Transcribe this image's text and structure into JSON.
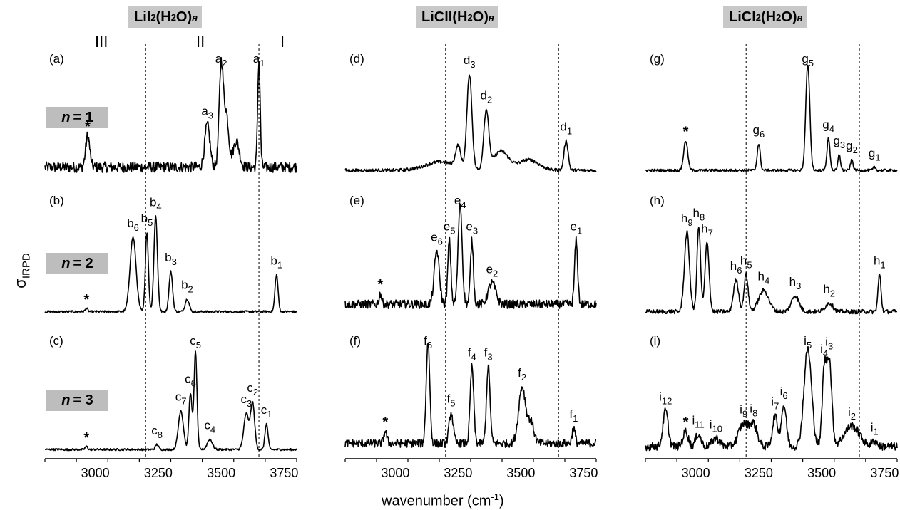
{
  "columns": [
    {
      "title_pre": "LiI",
      "title_sub1": "2",
      "title_mid": "(H",
      "title_sub2": "2",
      "title_post": "O)",
      "title_sup": "-",
      "title_n": "n"
    },
    {
      "title_pre": "LiClI(H",
      "title_sub1": "",
      "title_mid": "",
      "title_sub2": "2",
      "title_post": "O)",
      "title_sup": "-",
      "title_n": "n"
    },
    {
      "title_pre": "LiCl",
      "title_sub1": "2",
      "title_mid": "(H",
      "title_sub2": "2",
      "title_post": "O)",
      "title_sup": "-",
      "title_n": "n"
    }
  ],
  "regions": [
    "III",
    "II",
    "I"
  ],
  "n_labels": [
    {
      "prefix": "n",
      "text": "= 1"
    },
    {
      "prefix": "n",
      "text": "= 2"
    },
    {
      "prefix": "n",
      "text": "= 3"
    }
  ],
  "ylabel_main": "σ",
  "ylabel_sub": "IRPD",
  "xlabel_main": "wavenumber (cm",
  "xlabel_sup": "-1",
  "xlabel_end": ")",
  "chart_data": {
    "type": "line",
    "xlim": [
      2800,
      3800
    ],
    "xticks": [
      3000,
      3250,
      3500,
      3750
    ],
    "dashed_lines_x": [
      3200,
      3650
    ],
    "grid": false,
    "panels": [
      {
        "id": "(a)",
        "baseline": 0.05,
        "noise": 0.05,
        "star": 2970,
        "peaks": [
          [
            2970,
            0.3,
            8
          ],
          [
            3445,
            0.4,
            10
          ],
          [
            3500,
            0.95,
            8
          ],
          [
            3520,
            0.5,
            10
          ],
          [
            3560,
            0.25,
            12
          ],
          [
            3650,
            1.0,
            5
          ]
        ],
        "labels": [
          {
            "b": "a",
            "s": "3",
            "x": 3445
          },
          {
            "b": "a",
            "s": "2",
            "x": 3500
          },
          {
            "b": "a",
            "s": "1",
            "x": 3650
          }
        ]
      },
      {
        "id": "(b)",
        "baseline": 0.03,
        "noise": 0.01,
        "star": 2965,
        "peaks": [
          [
            2965,
            0.03,
            5
          ],
          [
            3150,
            0.7,
            12
          ],
          [
            3205,
            0.75,
            6
          ],
          [
            3240,
            0.9,
            7
          ],
          [
            3300,
            0.38,
            7
          ],
          [
            3365,
            0.12,
            8
          ],
          [
            3720,
            0.35,
            6
          ]
        ],
        "labels": [
          {
            "b": "b",
            "s": "6",
            "x": 3150
          },
          {
            "b": "b",
            "s": "5",
            "x": 3205
          },
          {
            "b": "b",
            "s": "4",
            "x": 3240
          },
          {
            "b": "b",
            "s": "3",
            "x": 3300
          },
          {
            "b": "b",
            "s": "2",
            "x": 3365
          },
          {
            "b": "b",
            "s": "1",
            "x": 3720
          }
        ]
      },
      {
        "id": "(c)",
        "baseline": 0.02,
        "noise": 0.01,
        "star": 2965,
        "peaks": [
          [
            2965,
            0.03,
            5
          ],
          [
            3245,
            0.05,
            6
          ],
          [
            3340,
            0.38,
            10
          ],
          [
            3378,
            0.55,
            6
          ],
          [
            3398,
            0.95,
            6
          ],
          [
            3455,
            0.1,
            10
          ],
          [
            3600,
            0.35,
            10
          ],
          [
            3625,
            0.45,
            8
          ],
          [
            3680,
            0.25,
            6
          ]
        ],
        "labels": [
          {
            "b": "c",
            "s": "8",
            "x": 3245
          },
          {
            "b": "c",
            "s": "7",
            "x": 3340
          },
          {
            "b": "c",
            "s": "6",
            "x": 3378
          },
          {
            "b": "c",
            "s": "5",
            "x": 3398
          },
          {
            "b": "c",
            "s": "4",
            "x": 3455
          },
          {
            "b": "c",
            "s": "3",
            "x": 3600
          },
          {
            "b": "c",
            "s": "2",
            "x": 3625
          },
          {
            "b": "c",
            "s": "1",
            "x": 3680
          }
        ]
      },
      {
        "id": "(d)",
        "baseline": 0.02,
        "noise": 0.015,
        "star": null,
        "peaks": [
          [
            3180,
            0.08,
            60
          ],
          [
            3250,
            0.2,
            10
          ],
          [
            3295,
            0.9,
            10
          ],
          [
            3362,
            0.55,
            10
          ],
          [
            3420,
            0.18,
            30
          ],
          [
            3530,
            0.1,
            40
          ],
          [
            3680,
            0.28,
            8
          ]
        ],
        "labels": [
          {
            "b": "d",
            "s": "3",
            "x": 3295
          },
          {
            "b": "d",
            "s": "2",
            "x": 3362
          },
          {
            "b": "d",
            "s": "1",
            "x": 3680
          }
        ]
      },
      {
        "id": "(e)",
        "baseline": 0.1,
        "noise": 0.04,
        "star": 2940,
        "peaks": [
          [
            2940,
            0.1,
            5
          ],
          [
            3165,
            0.5,
            10
          ],
          [
            3215,
            0.6,
            6
          ],
          [
            3258,
            0.95,
            8
          ],
          [
            3305,
            0.6,
            6
          ],
          [
            3385,
            0.2,
            15
          ],
          [
            3720,
            0.6,
            6
          ]
        ],
        "labels": [
          {
            "b": "e",
            "s": "6",
            "x": 3165
          },
          {
            "b": "e",
            "s": "5",
            "x": 3215
          },
          {
            "b": "e",
            "s": "4",
            "x": 3258
          },
          {
            "b": "e",
            "s": "3",
            "x": 3305
          },
          {
            "b": "e",
            "s": "2",
            "x": 3385
          },
          {
            "b": "e",
            "s": "1",
            "x": 3720
          }
        ]
      },
      {
        "id": "(f)",
        "baseline": 0.08,
        "noise": 0.04,
        "star": 2960,
        "peaks": [
          [
            2960,
            0.12,
            6
          ],
          [
            3130,
            1.0,
            7
          ],
          [
            3222,
            0.3,
            8
          ],
          [
            3305,
            0.75,
            7
          ],
          [
            3370,
            0.75,
            7
          ],
          [
            3505,
            0.55,
            14
          ],
          [
            3540,
            0.2,
            12
          ],
          [
            3710,
            0.15,
            6
          ]
        ],
        "labels": [
          {
            "b": "f",
            "s": "6",
            "x": 3130
          },
          {
            "b": "f",
            "s": "5",
            "x": 3222
          },
          {
            "b": "f",
            "s": "4",
            "x": 3305
          },
          {
            "b": "f",
            "s": "3",
            "x": 3370
          },
          {
            "b": "f",
            "s": "2",
            "x": 3505
          },
          {
            "b": "f",
            "s": "1",
            "x": 3710
          }
        ]
      },
      {
        "id": "(g)",
        "baseline": 0.02,
        "noise": 0.012,
        "star": 2960,
        "peaks": [
          [
            2960,
            0.28,
            8
          ],
          [
            3250,
            0.25,
            6
          ],
          [
            3445,
            1.0,
            8
          ],
          [
            3527,
            0.3,
            6
          ],
          [
            3570,
            0.15,
            5
          ],
          [
            3620,
            0.1,
            5
          ],
          [
            3710,
            0.03,
            5
          ]
        ],
        "labels": [
          {
            "b": "g",
            "s": "6",
            "x": 3250
          },
          {
            "b": "g",
            "s": "5",
            "x": 3445
          },
          {
            "b": "g",
            "s": "4",
            "x": 3527
          },
          {
            "b": "g",
            "s": "3",
            "x": 3570
          },
          {
            "b": "g",
            "s": "2",
            "x": 3620
          },
          {
            "b": "g",
            "s": "1",
            "x": 3710
          }
        ]
      },
      {
        "id": "(h)",
        "baseline": 0.03,
        "noise": 0.02,
        "star": null,
        "peaks": [
          [
            2965,
            0.75,
            10
          ],
          [
            3012,
            0.8,
            7
          ],
          [
            3045,
            0.65,
            8
          ],
          [
            3160,
            0.3,
            10
          ],
          [
            3200,
            0.35,
            8
          ],
          [
            3270,
            0.2,
            20
          ],
          [
            3395,
            0.15,
            15
          ],
          [
            3530,
            0.08,
            15
          ],
          [
            3730,
            0.35,
            6
          ]
        ],
        "labels": [
          {
            "b": "h",
            "s": "9",
            "x": 2965
          },
          {
            "b": "h",
            "s": "8",
            "x": 3012
          },
          {
            "b": "h",
            "s": "7",
            "x": 3045
          },
          {
            "b": "h",
            "s": "6",
            "x": 3160
          },
          {
            "b": "h",
            "s": "5",
            "x": 3200
          },
          {
            "b": "h",
            "s": "4",
            "x": 3270
          },
          {
            "b": "h",
            "s": "3",
            "x": 3395
          },
          {
            "b": "h",
            "s": "2",
            "x": 3530
          },
          {
            "b": "h",
            "s": "1",
            "x": 3730
          }
        ]
      },
      {
        "id": "(i)",
        "baseline": 0.05,
        "noise": 0.04,
        "star": 2960,
        "peaks": [
          [
            2880,
            0.35,
            10
          ],
          [
            2960,
            0.15,
            10
          ],
          [
            3010,
            0.12,
            10
          ],
          [
            3080,
            0.08,
            15
          ],
          [
            3190,
            0.22,
            20
          ],
          [
            3230,
            0.2,
            15
          ],
          [
            3315,
            0.3,
            10
          ],
          [
            3350,
            0.4,
            10
          ],
          [
            3445,
            0.95,
            15
          ],
          [
            3510,
            0.7,
            8
          ],
          [
            3530,
            0.85,
            10
          ],
          [
            3620,
            0.2,
            30
          ],
          [
            3710,
            0.05,
            10
          ]
        ],
        "labels": [
          {
            "b": "i",
            "s": "12",
            "x": 2880
          },
          {
            "b": "i",
            "s": "11",
            "x": 3010
          },
          {
            "b": "i",
            "s": "10",
            "x": 3080
          },
          {
            "b": "i",
            "s": "9",
            "x": 3190
          },
          {
            "b": "i",
            "s": "8",
            "x": 3230
          },
          {
            "b": "i",
            "s": "7",
            "x": 3315
          },
          {
            "b": "i",
            "s": "6",
            "x": 3350
          },
          {
            "b": "i",
            "s": "5",
            "x": 3445
          },
          {
            "b": "i",
            "s": "4",
            "x": 3510
          },
          {
            "b": "i",
            "s": "3",
            "x": 3530
          },
          {
            "b": "i",
            "s": "2",
            "x": 3620
          },
          {
            "b": "i",
            "s": "1",
            "x": 3710
          }
        ]
      }
    ]
  }
}
